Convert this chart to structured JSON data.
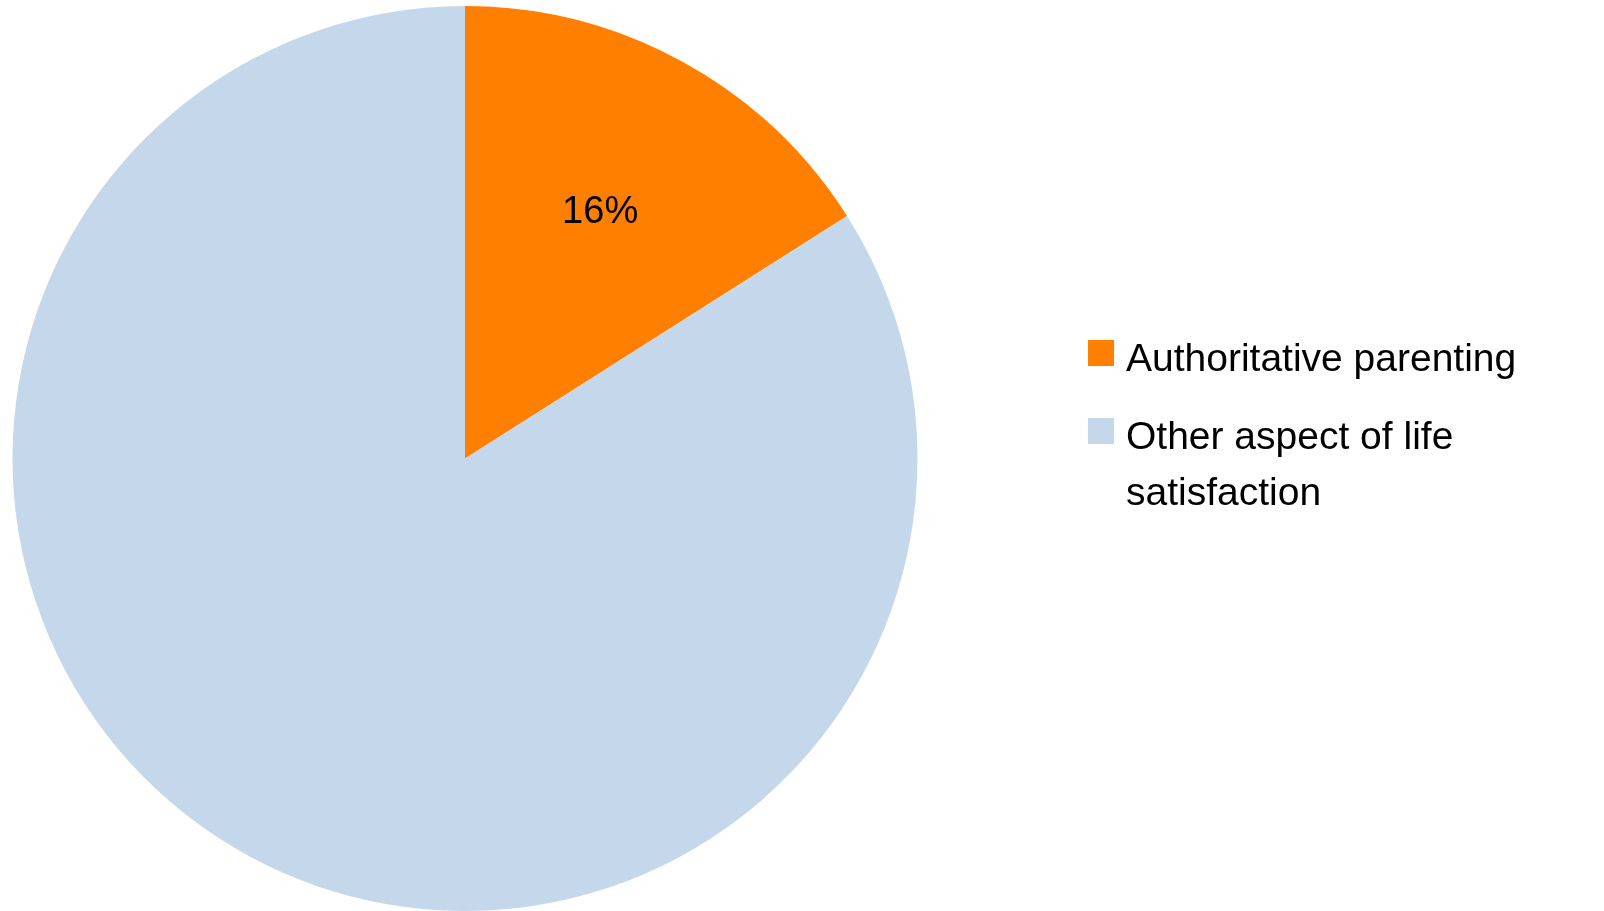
{
  "chart_data": {
    "type": "pie",
    "categories": [
      "Authoritative parenting",
      "Other aspect of life satisfaction"
    ],
    "values": [
      16,
      84
    ],
    "colors": [
      "#ff7f00",
      "#c5d7ea"
    ],
    "value_labels": [
      "16%",
      null
    ],
    "legend": "right"
  }
}
